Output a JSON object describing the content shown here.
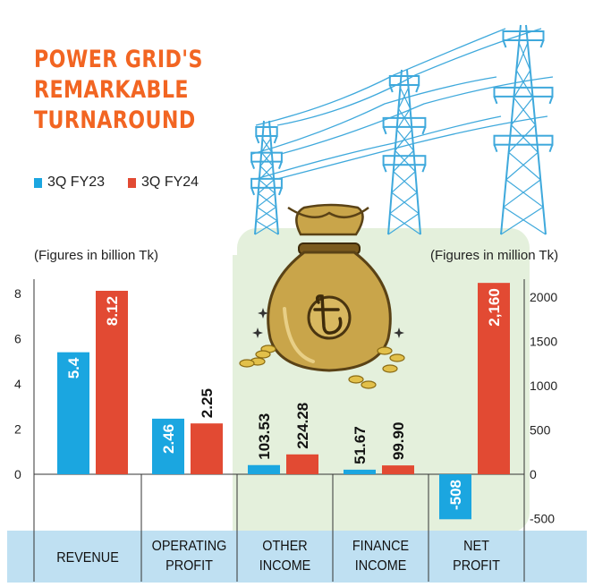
{
  "title_lines": [
    "POWER GRID'S",
    "REMARKABLE",
    "TURNAROUND"
  ],
  "legend": [
    {
      "label": "3Q FY23",
      "color": "#1ba6e0"
    },
    {
      "label": "3Q FY24",
      "color": "#e24a33"
    }
  ],
  "left_note": "(Figures in billion Tk)",
  "right_note": "(Figures in million Tk)",
  "colors": {
    "title": "#f26522",
    "panel_green": "#e4f0dc",
    "band_blue": "#bfe0f2",
    "tower_blue": "#3fa9dc",
    "bag": "#c9a54a"
  },
  "icons": [
    "power-tower-icon",
    "money-bag-icon",
    "taka-sign-icon",
    "coin-icon",
    "sparkle-icon"
  ],
  "chart_data": {
    "type": "bar",
    "categories": [
      "REVENUE",
      "OPERATING PROFIT",
      "OTHER INCOME",
      "FINANCE INCOME",
      "NET PROFIT"
    ],
    "category_lines": [
      [
        "REVENUE"
      ],
      [
        "OPERATING",
        "PROFIT"
      ],
      [
        "OTHER",
        "INCOME"
      ],
      [
        "FINANCE",
        "INCOME"
      ],
      [
        "NET",
        "PROFIT"
      ]
    ],
    "category_axis": [
      "left",
      "left",
      "right",
      "right",
      "right"
    ],
    "series": [
      {
        "name": "3Q FY23",
        "values": [
          5.4,
          2.46,
          103.53,
          51.67,
          -508
        ],
        "labels": [
          "5.4",
          "2.46",
          "103.53",
          "51.67",
          "-508"
        ]
      },
      {
        "name": "3Q FY24",
        "values": [
          8.12,
          2.25,
          224.28,
          99.9,
          2160
        ],
        "labels": [
          "8.12",
          "2.25",
          "224.28",
          "99.90",
          "2,160"
        ]
      }
    ],
    "left_axis": {
      "ylim": [
        0,
        8.9
      ],
      "ticks": [
        "0",
        "2",
        "4",
        "6",
        "8"
      ],
      "unit": "billion Tk"
    },
    "right_axis": {
      "ylim": [
        -600,
        2250
      ],
      "ticks": [
        "-500",
        "0",
        "500",
        "1000",
        "1500",
        "2000"
      ],
      "unit": "million Tk"
    },
    "grid": false,
    "legend_position": "top-left"
  }
}
